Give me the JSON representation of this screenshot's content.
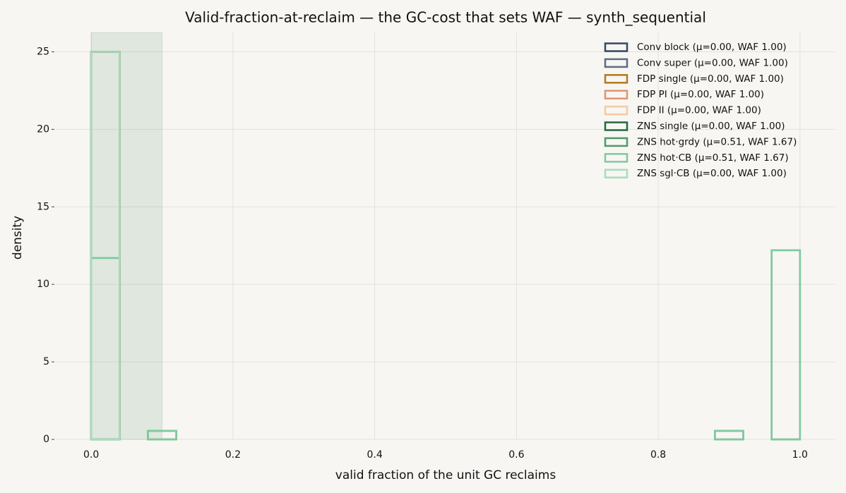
{
  "chart_data": {
    "type": "histogram",
    "title": "Valid-fraction-at-reclaim — the GC-cost that sets WAF — synth_sequential",
    "xlabel": "valid fraction of the unit GC reclaims",
    "ylabel": "density",
    "bins": [
      0,
      0.04,
      0.08,
      0.12,
      0.16,
      0.2,
      0.24,
      0.28,
      0.32,
      0.36,
      0.4,
      0.44,
      0.48,
      0.52,
      0.56,
      0.6,
      0.64,
      0.68,
      0.72,
      0.76,
      0.8,
      0.84,
      0.88,
      0.92,
      0.96,
      1.0
    ],
    "highlight_span": [
      0,
      0.1
    ],
    "highlight_color": "#2e7d4a",
    "series": [
      {
        "name": "Conv block  (μ=0.00, WAF 1.00)",
        "color": "#34495e",
        "values": [
          25,
          0,
          0,
          0,
          0,
          0,
          0,
          0,
          0,
          0,
          0,
          0,
          0,
          0,
          0,
          0,
          0,
          0,
          0,
          0,
          0,
          0,
          0,
          0,
          0
        ]
      },
      {
        "name": "Conv super  (μ=0.00, WAF 1.00)",
        "color": "#5d6d7e",
        "values": [
          25,
          0,
          0,
          0,
          0,
          0,
          0,
          0,
          0,
          0,
          0,
          0,
          0,
          0,
          0,
          0,
          0,
          0,
          0,
          0,
          0,
          0,
          0,
          0,
          0
        ]
      },
      {
        "name": "FDP single  (μ=0.00, WAF 1.00)",
        "color": "#b07a1f",
        "values": [
          25,
          0,
          0,
          0,
          0,
          0,
          0,
          0,
          0,
          0,
          0,
          0,
          0,
          0,
          0,
          0,
          0,
          0,
          0,
          0,
          0,
          0,
          0,
          0,
          0
        ]
      },
      {
        "name": "FDP PI  (μ=0.00, WAF 1.00)",
        "color": "#e0956a",
        "values": [
          25,
          0,
          0,
          0,
          0,
          0,
          0,
          0,
          0,
          0,
          0,
          0,
          0,
          0,
          0,
          0,
          0,
          0,
          0,
          0,
          0,
          0,
          0,
          0,
          0
        ]
      },
      {
        "name": "FDP II  (μ=0.00, WAF 1.00)",
        "color": "#f5c9a6",
        "values": [
          25,
          0,
          0,
          0,
          0,
          0,
          0,
          0,
          0,
          0,
          0,
          0,
          0,
          0,
          0,
          0,
          0,
          0,
          0,
          0,
          0,
          0,
          0,
          0,
          0
        ]
      },
      {
        "name": "ZNS single  (μ=0.00, WAF 1.00)",
        "color": "#23693b",
        "values": [
          25,
          0,
          0,
          0,
          0,
          0,
          0,
          0,
          0,
          0,
          0,
          0,
          0,
          0,
          0,
          0,
          0,
          0,
          0,
          0,
          0,
          0,
          0,
          0,
          0
        ]
      },
      {
        "name": "ZNS hot·grdy  (μ=0.51, WAF 1.67)",
        "color": "#4e9a6a",
        "values": [
          11.7,
          0,
          0.55,
          0,
          0,
          0,
          0,
          0,
          0,
          0,
          0,
          0,
          0,
          0,
          0,
          0,
          0,
          0,
          0,
          0,
          0,
          0,
          0.55,
          0,
          12.2
        ]
      },
      {
        "name": "ZNS hot·CB  (μ=0.51, WAF 1.67)",
        "color": "#7fc99d",
        "values": [
          11.7,
          0,
          0.55,
          0,
          0,
          0,
          0,
          0,
          0,
          0,
          0,
          0,
          0,
          0,
          0,
          0,
          0,
          0,
          0,
          0,
          0,
          0,
          0.55,
          0,
          12.2
        ]
      },
      {
        "name": "ZNS sgl·CB  (μ=0.00, WAF 1.00)",
        "color": "#a8dcbb",
        "values": [
          25,
          0,
          0,
          0,
          0,
          0,
          0,
          0,
          0,
          0,
          0,
          0,
          0,
          0,
          0,
          0,
          0,
          0,
          0,
          0,
          0,
          0,
          0,
          0,
          0
        ]
      }
    ],
    "xlim": [
      -0.05,
      1.05
    ],
    "ylim": [
      0,
      26.25
    ],
    "xticks": [
      {
        "value": 0,
        "label": "0.0"
      },
      0.2,
      0.4,
      0.6,
      0.8,
      {
        "value": 1,
        "label": "1.0"
      }
    ],
    "yticks": [
      0,
      5,
      10,
      15,
      20,
      25
    ],
    "grid": true,
    "legend": "upper right"
  }
}
